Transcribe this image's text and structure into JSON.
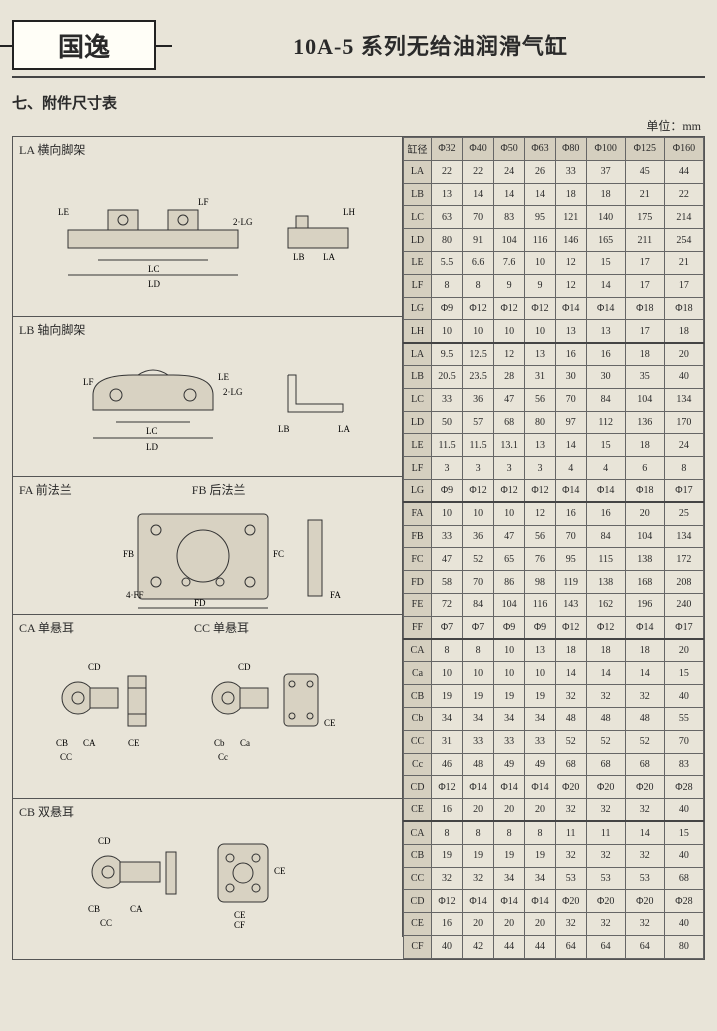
{
  "header": {
    "logo_text": "国逸",
    "title": "10A-5 系列无给油润滑气缸"
  },
  "section_title": "七、附件尺寸表",
  "unit_label": "单位：mm",
  "row_header_label": "缸径",
  "bore_sizes": [
    "Φ32",
    "Φ40",
    "Φ50",
    "Φ63",
    "Φ80",
    "Φ100",
    "Φ125",
    "Φ160"
  ],
  "blocks": [
    {
      "labels": [
        "LA 横向脚架"
      ],
      "height": 180,
      "svg_note": "LA foot bracket – LE, LF, LH, LG, LC, LD, 2·LG, LB, LA",
      "rows": [
        {
          "p": "LA",
          "v": [
            "22",
            "22",
            "24",
            "26",
            "33",
            "37",
            "45",
            "44"
          ]
        },
        {
          "p": "LB",
          "v": [
            "13",
            "14",
            "14",
            "14",
            "18",
            "18",
            "21",
            "22"
          ]
        },
        {
          "p": "LC",
          "v": [
            "63",
            "70",
            "83",
            "95",
            "121",
            "140",
            "175",
            "214"
          ]
        },
        {
          "p": "LD",
          "v": [
            "80",
            "91",
            "104",
            "116",
            "146",
            "165",
            "211",
            "254"
          ]
        },
        {
          "p": "LE",
          "v": [
            "5.5",
            "6.6",
            "7.6",
            "10",
            "12",
            "15",
            "17",
            "21"
          ]
        },
        {
          "p": "LF",
          "v": [
            "8",
            "8",
            "9",
            "9",
            "12",
            "14",
            "17",
            "17"
          ]
        },
        {
          "p": "LG",
          "v": [
            "Φ9",
            "Φ12",
            "Φ12",
            "Φ12",
            "Φ14",
            "Φ14",
            "Φ18",
            "Φ18"
          ]
        },
        {
          "p": "LH",
          "v": [
            "10",
            "10",
            "10",
            "10",
            "13",
            "13",
            "17",
            "18"
          ]
        }
      ]
    },
    {
      "labels": [
        "LB 轴向脚架"
      ],
      "height": 160,
      "svg_note": "LB axial bracket – LF, LE, 2·LG, LC, LD, LB, LA",
      "rows": [
        {
          "p": "LA",
          "v": [
            "9.5",
            "12.5",
            "12",
            "13",
            "16",
            "16",
            "18",
            "20"
          ]
        },
        {
          "p": "LB",
          "v": [
            "20.5",
            "23.5",
            "28",
            "31",
            "30",
            "30",
            "35",
            "40"
          ]
        },
        {
          "p": "LC",
          "v": [
            "33",
            "36",
            "47",
            "56",
            "70",
            "84",
            "104",
            "134"
          ]
        },
        {
          "p": "LD",
          "v": [
            "50",
            "57",
            "68",
            "80",
            "97",
            "112",
            "136",
            "170"
          ]
        },
        {
          "p": "LE",
          "v": [
            "11.5",
            "11.5",
            "13.1",
            "13",
            "14",
            "15",
            "18",
            "24"
          ]
        },
        {
          "p": "LF",
          "v": [
            "3",
            "3",
            "3",
            "3",
            "4",
            "4",
            "6",
            "8"
          ]
        },
        {
          "p": "LG",
          "v": [
            "Φ9",
            "Φ12",
            "Φ12",
            "Φ12",
            "Φ14",
            "Φ14",
            "Φ18",
            "Φ17"
          ]
        }
      ]
    },
    {
      "labels": [
        "FA 前法兰",
        "FB 后法兰"
      ],
      "height": 138,
      "svg_note": "FA/FB flange – FB, FC, 4·FF, FD, FE, FA",
      "rows": [
        {
          "p": "FA",
          "v": [
            "10",
            "10",
            "10",
            "12",
            "16",
            "16",
            "20",
            "25"
          ]
        },
        {
          "p": "FB",
          "v": [
            "33",
            "36",
            "47",
            "56",
            "70",
            "84",
            "104",
            "134"
          ]
        },
        {
          "p": "FC",
          "v": [
            "47",
            "52",
            "65",
            "76",
            "95",
            "115",
            "138",
            "172"
          ]
        },
        {
          "p": "FD",
          "v": [
            "58",
            "70",
            "86",
            "98",
            "119",
            "138",
            "168",
            "208"
          ]
        },
        {
          "p": "FE",
          "v": [
            "72",
            "84",
            "104",
            "116",
            "143",
            "162",
            "196",
            "240"
          ]
        },
        {
          "p": "FF",
          "v": [
            "Φ7",
            "Φ7",
            "Φ9",
            "Φ9",
            "Φ12",
            "Φ12",
            "Φ14",
            "Φ17"
          ]
        }
      ]
    },
    {
      "labels": [
        "CA 单悬耳",
        "CC 单悬耳"
      ],
      "height": 184,
      "svg_note": "CA / CC single clevis – CD, CB, CA, CC, CE, Ca, Cb, Cc",
      "rows": [
        {
          "p": "CA",
          "v": [
            "8",
            "8",
            "10",
            "13",
            "18",
            "18",
            "18",
            "20"
          ]
        },
        {
          "p": "Ca",
          "v": [
            "10",
            "10",
            "10",
            "10",
            "14",
            "14",
            "14",
            "15"
          ]
        },
        {
          "p": "CB",
          "v": [
            "19",
            "19",
            "19",
            "19",
            "32",
            "32",
            "32",
            "40"
          ]
        },
        {
          "p": "Cb",
          "v": [
            "34",
            "34",
            "34",
            "34",
            "48",
            "48",
            "48",
            "55"
          ]
        },
        {
          "p": "CC",
          "v": [
            "31",
            "33",
            "33",
            "33",
            "52",
            "52",
            "52",
            "70"
          ]
        },
        {
          "p": "Cc",
          "v": [
            "46",
            "48",
            "49",
            "49",
            "68",
            "68",
            "68",
            "83"
          ]
        },
        {
          "p": "CD",
          "v": [
            "Φ12",
            "Φ14",
            "Φ14",
            "Φ14",
            "Φ20",
            "Φ20",
            "Φ20",
            "Φ28"
          ]
        },
        {
          "p": "CE",
          "v": [
            "16",
            "20",
            "20",
            "20",
            "32",
            "32",
            "32",
            "40"
          ]
        }
      ]
    },
    {
      "labels": [
        "CB 双悬耳"
      ],
      "height": 138,
      "svg_note": "CB double clevis – CD, CB, CA, CC, CE, CF",
      "rows": [
        {
          "p": "CA",
          "v": [
            "8",
            "8",
            "8",
            "8",
            "11",
            "11",
            "14",
            "15"
          ]
        },
        {
          "p": "CB",
          "v": [
            "19",
            "19",
            "19",
            "19",
            "32",
            "32",
            "32",
            "40"
          ]
        },
        {
          "p": "CC",
          "v": [
            "32",
            "32",
            "34",
            "34",
            "53",
            "53",
            "53",
            "68"
          ]
        },
        {
          "p": "CD",
          "v": [
            "Φ12",
            "Φ14",
            "Φ14",
            "Φ14",
            "Φ20",
            "Φ20",
            "Φ20",
            "Φ28"
          ]
        },
        {
          "p": "CE",
          "v": [
            "16",
            "20",
            "20",
            "20",
            "32",
            "32",
            "32",
            "40"
          ]
        },
        {
          "p": "CF",
          "v": [
            "40",
            "42",
            "44",
            "44",
            "64",
            "64",
            "64",
            "80"
          ]
        }
      ]
    }
  ],
  "colors": {
    "page_bg": "#e8e4d8",
    "header_rule": "#444444",
    "cell_border": "#666666",
    "header_cell_bg": "#d5cfbf"
  }
}
